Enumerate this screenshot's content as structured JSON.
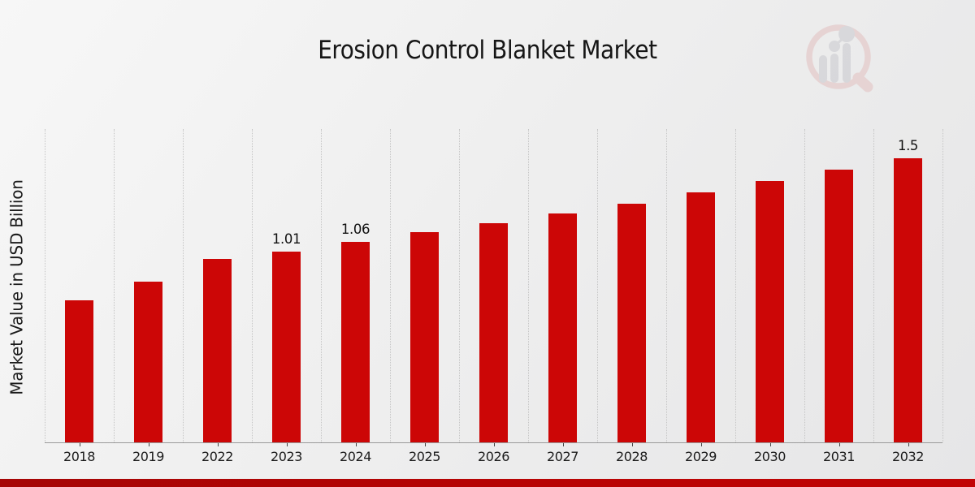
{
  "page": {
    "background_top": "#f7f7f7",
    "background_bottom": "#e6e6e7",
    "footer_band_left": "#a50505",
    "footer_band_right": "#c10404"
  },
  "logo": {
    "name": "market-research-future-watermark",
    "ring_color": "#e2bcbc",
    "bars_color": "#c5c5cb",
    "handle_color": "#e2bcbc"
  },
  "chart_data": {
    "type": "bar",
    "title": "Erosion Control Blanket Market",
    "xlabel": "",
    "ylabel": "Market Value in USD Billion",
    "categories": [
      "2018",
      "2019",
      "2022",
      "2023",
      "2024",
      "2025",
      "2026",
      "2027",
      "2028",
      "2029",
      "2030",
      "2031",
      "2032"
    ],
    "values": [
      0.75,
      0.85,
      0.97,
      1.01,
      1.06,
      1.11,
      1.16,
      1.21,
      1.26,
      1.32,
      1.38,
      1.44,
      1.5
    ],
    "value_labels": [
      "",
      "",
      "",
      "1.01",
      "1.06",
      "",
      "",
      "",
      "",
      "",
      "",
      "",
      "1.5"
    ],
    "bar_color": "#cc0606",
    "ylim": [
      0,
      1.66
    ],
    "grid": "vertical-dotted",
    "legend": "none"
  }
}
